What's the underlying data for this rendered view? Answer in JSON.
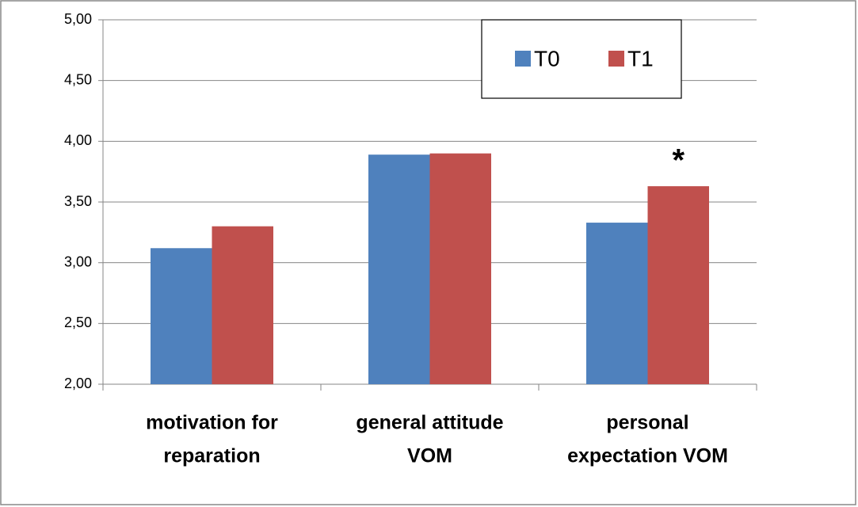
{
  "chart_data": {
    "type": "bar",
    "categories": [
      [
        "motivation for",
        "reparation"
      ],
      [
        "general attitude",
        "VOM"
      ],
      [
        "personal",
        "expectation VOM"
      ]
    ],
    "series": [
      {
        "name": "T0",
        "color": "#4f81bd",
        "values": [
          3.12,
          3.89,
          3.33
        ]
      },
      {
        "name": "T1",
        "color": "#c0504d",
        "values": [
          3.3,
          3.9,
          3.63
        ]
      }
    ],
    "ylim": [
      2,
      5
    ],
    "yticks": [
      {
        "value": 2,
        "label": "2,00"
      },
      {
        "value": 2.5,
        "label": "2,50"
      },
      {
        "value": 3,
        "label": "3,00"
      },
      {
        "value": 3.5,
        "label": "3,50"
      },
      {
        "value": 4,
        "label": "4,00"
      },
      {
        "value": 4.5,
        "label": "4,50"
      },
      {
        "value": 5,
        "label": "5,00"
      }
    ],
    "grid": true,
    "legend": "top-right",
    "annotations": [
      {
        "text": "*",
        "category": 2,
        "series": 1
      }
    ]
  }
}
